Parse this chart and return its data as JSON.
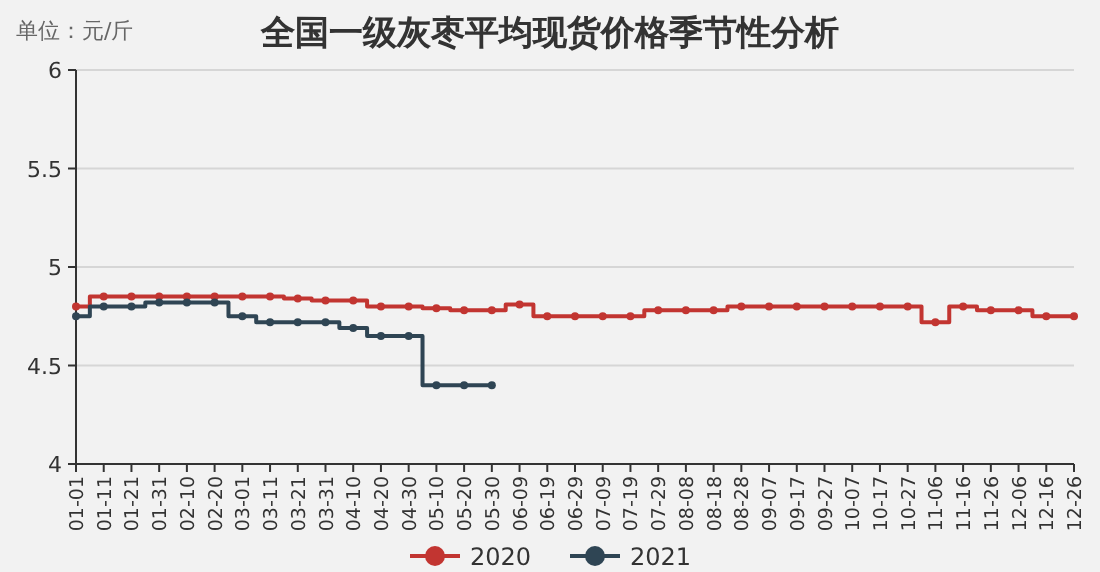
{
  "chart_data": {
    "type": "step",
    "title": "全国一级灰枣平均现货价格季节性分析",
    "ylabel": "单位：元/斤",
    "categories": [
      "01-01",
      "01-11",
      "01-21",
      "01-31",
      "02-10",
      "02-20",
      "03-01",
      "03-11",
      "03-21",
      "03-31",
      "04-10",
      "04-20",
      "04-30",
      "05-10",
      "05-20",
      "05-30",
      "06-09",
      "06-19",
      "06-29",
      "07-09",
      "07-19",
      "07-29",
      "08-08",
      "08-18",
      "08-28",
      "09-07",
      "09-17",
      "09-27",
      "10-07",
      "10-17",
      "10-27",
      "11-06",
      "11-16",
      "11-26",
      "12-06",
      "12-16",
      "12-26"
    ],
    "series": [
      {
        "name": "2020",
        "color": "#c23531",
        "values": [
          4.8,
          4.85,
          4.85,
          4.85,
          4.85,
          4.85,
          4.85,
          4.85,
          4.84,
          4.83,
          4.83,
          4.8,
          4.8,
          4.79,
          4.78,
          4.78,
          4.81,
          4.75,
          4.75,
          4.75,
          4.75,
          4.78,
          4.78,
          4.78,
          4.8,
          4.8,
          4.8,
          4.8,
          4.8,
          4.8,
          4.8,
          4.72,
          4.8,
          4.78,
          4.78,
          4.75,
          4.75
        ]
      },
      {
        "name": "2021",
        "color": "#2f4554",
        "values": [
          4.75,
          4.8,
          4.8,
          4.82,
          4.82,
          4.82,
          4.75,
          4.72,
          4.72,
          4.72,
          4.69,
          4.65,
          4.65,
          4.4,
          4.4,
          4.4,
          null,
          null,
          null,
          null,
          null,
          null,
          null,
          null,
          null,
          null,
          null,
          null,
          null,
          null,
          null,
          null,
          null,
          null,
          null,
          null,
          null
        ]
      }
    ],
    "ylim": [
      4,
      6
    ],
    "yticks": [
      4,
      4.5,
      5,
      5.5,
      6
    ],
    "grid": "y",
    "legend": "bottom",
    "marker": "circle"
  }
}
